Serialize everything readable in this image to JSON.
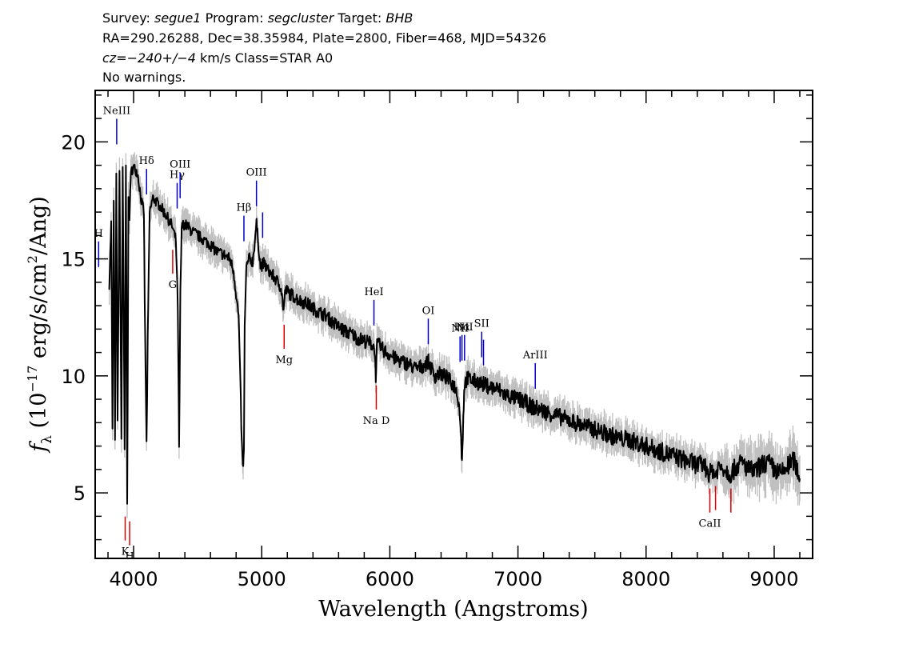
{
  "header": {
    "survey_label": "Survey:",
    "survey": "segue1",
    "program_label": "Program:",
    "program": "segcluster",
    "target_label": "Target:",
    "target": "BHB",
    "line2": "RA=290.26288, Dec=38.35984, Plate=2800, Fiber=468, MJD=54326",
    "cz": "cz=−240+/−4",
    "cz_units": "km/s Class=STAR A0",
    "warnings": "No warnings."
  },
  "chart_data": {
    "type": "line",
    "xlabel": "Wavelength (Angstroms)",
    "ylabel": "f_λ (10^-17 erg/s/cm^2/Ang)",
    "xlim": [
      3700,
      9300
    ],
    "ylim": [
      2.2,
      22.2
    ],
    "x_ticks": [
      4000,
      5000,
      6000,
      7000,
      8000,
      9000
    ],
    "y_ticks": [
      5,
      10,
      15,
      20
    ],
    "grid": false,
    "colors": {
      "spectrum": "#000000",
      "error_band": "#c0c0c0",
      "emission": "#0000cc",
      "absorption": "#dd0000"
    },
    "series": [
      {
        "x": [
          3810,
          3825,
          3835,
          3845,
          3855,
          3865,
          3875,
          3890,
          3905,
          3915,
          3930,
          3940,
          3950,
          3960,
          3968,
          3975,
          3985,
          4000,
          4030,
          4060,
          4080,
          4090,
          4101,
          4110,
          4125,
          4150,
          4200,
          4250,
          4300,
          4330,
          4345,
          4355,
          4365,
          4375,
          4390,
          4420,
          4450,
          4500,
          4550,
          4600,
          4650,
          4700,
          4750,
          4780,
          4820,
          4845,
          4855,
          4861,
          4867,
          4880,
          4900,
          4930,
          4959,
          4990,
          5020,
          5050,
          5100,
          5150,
          5170,
          5185,
          5200,
          5250,
          5300,
          5350,
          5400,
          5450,
          5500,
          5550,
          5600,
          5650,
          5700,
          5750,
          5800,
          5850,
          5880,
          5890,
          5900,
          5920,
          5950,
          6000,
          6050,
          6100,
          6150,
          6200,
          6250,
          6300,
          6350,
          6400,
          6450,
          6500,
          6530,
          6550,
          6560,
          6563,
          6570,
          6580,
          6600,
          6650,
          6700,
          6750,
          6800,
          6850,
          6900,
          6950,
          7000,
          7050,
          7100,
          7150,
          7200,
          7250,
          7300,
          7350,
          7400,
          7450,
          7500,
          7550,
          7600,
          7650,
          7700,
          7750,
          7800,
          7850,
          7900,
          7950,
          8000,
          8050,
          8100,
          8150,
          8200,
          8250,
          8300,
          8350,
          8400,
          8450,
          8498,
          8520,
          8542,
          8560,
          8600,
          8620,
          8662,
          8700,
          8750,
          8800,
          8850,
          8900,
          8950,
          9000,
          9050,
          9100,
          9150,
          9200
        ],
        "values": [
          13.9,
          16.5,
          7.8,
          17.3,
          7.2,
          18.5,
          7.9,
          18.8,
          7.3,
          19.0,
          6.8,
          18.9,
          4.4,
          17.8,
          16.6,
          18.3,
          18.8,
          18.9,
          18.7,
          17.5,
          17.0,
          11.5,
          7.1,
          11.5,
          17.0,
          17.6,
          17.3,
          16.9,
          16.4,
          15.8,
          13.0,
          6.9,
          13.5,
          16.3,
          16.5,
          16.4,
          16.2,
          16.0,
          15.8,
          15.6,
          15.3,
          15.2,
          15.0,
          14.5,
          12.5,
          7.0,
          6.0,
          6.8,
          12.0,
          14.6,
          15.0,
          14.9,
          16.5,
          14.7,
          14.8,
          14.5,
          14.2,
          13.8,
          12.8,
          13.7,
          13.6,
          13.4,
          13.2,
          13.1,
          12.9,
          12.7,
          12.6,
          12.3,
          12.1,
          11.9,
          11.8,
          11.6,
          11.5,
          11.4,
          11.2,
          10.0,
          11.3,
          11.3,
          11.1,
          10.9,
          10.7,
          10.6,
          10.5,
          10.3,
          10.4,
          10.6,
          10.0,
          10.1,
          9.9,
          9.6,
          9.2,
          8.2,
          6.7,
          6.6,
          7.5,
          9.5,
          9.9,
          9.8,
          9.7,
          9.6,
          9.5,
          9.4,
          9.2,
          9.1,
          9.0,
          8.9,
          8.7,
          8.6,
          8.5,
          8.4,
          8.3,
          8.2,
          8.1,
          8.0,
          7.9,
          7.8,
          7.7,
          7.6,
          7.5,
          7.4,
          7.3,
          7.3,
          7.2,
          7.1,
          7.0,
          6.9,
          6.8,
          6.7,
          6.6,
          6.5,
          6.4,
          6.3,
          6.2,
          6.2,
          5.8,
          6.0,
          5.7,
          6.1,
          6.1,
          6.0,
          5.8,
          6.1,
          6.3,
          6.0,
          5.9,
          6.2,
          6.3,
          6.0,
          5.8,
          6.1,
          6.4,
          5.7
        ]
      }
    ],
    "emission_lines": [
      {
        "label": "H",
        "x": 3727
      },
      {
        "label": "NeIII",
        "x": 3868
      },
      {
        "label": "Hδ",
        "x": 4101
      },
      {
        "label": "Hγ",
        "x": 4340
      },
      {
        "label": "OIII",
        "x": 4363
      },
      {
        "label": "Hβ",
        "x": 4861
      },
      {
        "label": "OIII",
        "x": 4959
      },
      {
        "label": "",
        "x": 5007
      },
      {
        "label": "HeI",
        "x": 5876
      },
      {
        "label": "OI",
        "x": 6300
      },
      {
        "label": "NII",
        "x": 6548
      },
      {
        "label": "Hα",
        "x": 6563
      },
      {
        "label": "NII",
        "x": 6583
      },
      {
        "label": "SII",
        "x": 6717
      },
      {
        "label": "",
        "x": 6731
      },
      {
        "label": "ArIII",
        "x": 7135
      }
    ],
    "absorption_lines": [
      {
        "label": "K",
        "x": 3934
      },
      {
        "label": "H",
        "x": 3969
      },
      {
        "label": "G",
        "x": 4305
      },
      {
        "label": "Mg",
        "x": 5175
      },
      {
        "label": "Na D",
        "x": 5894
      },
      {
        "label": "CaII",
        "x": 8498
      },
      {
        "label": "",
        "x": 8542
      },
      {
        "label": "",
        "x": 8662
      }
    ]
  }
}
